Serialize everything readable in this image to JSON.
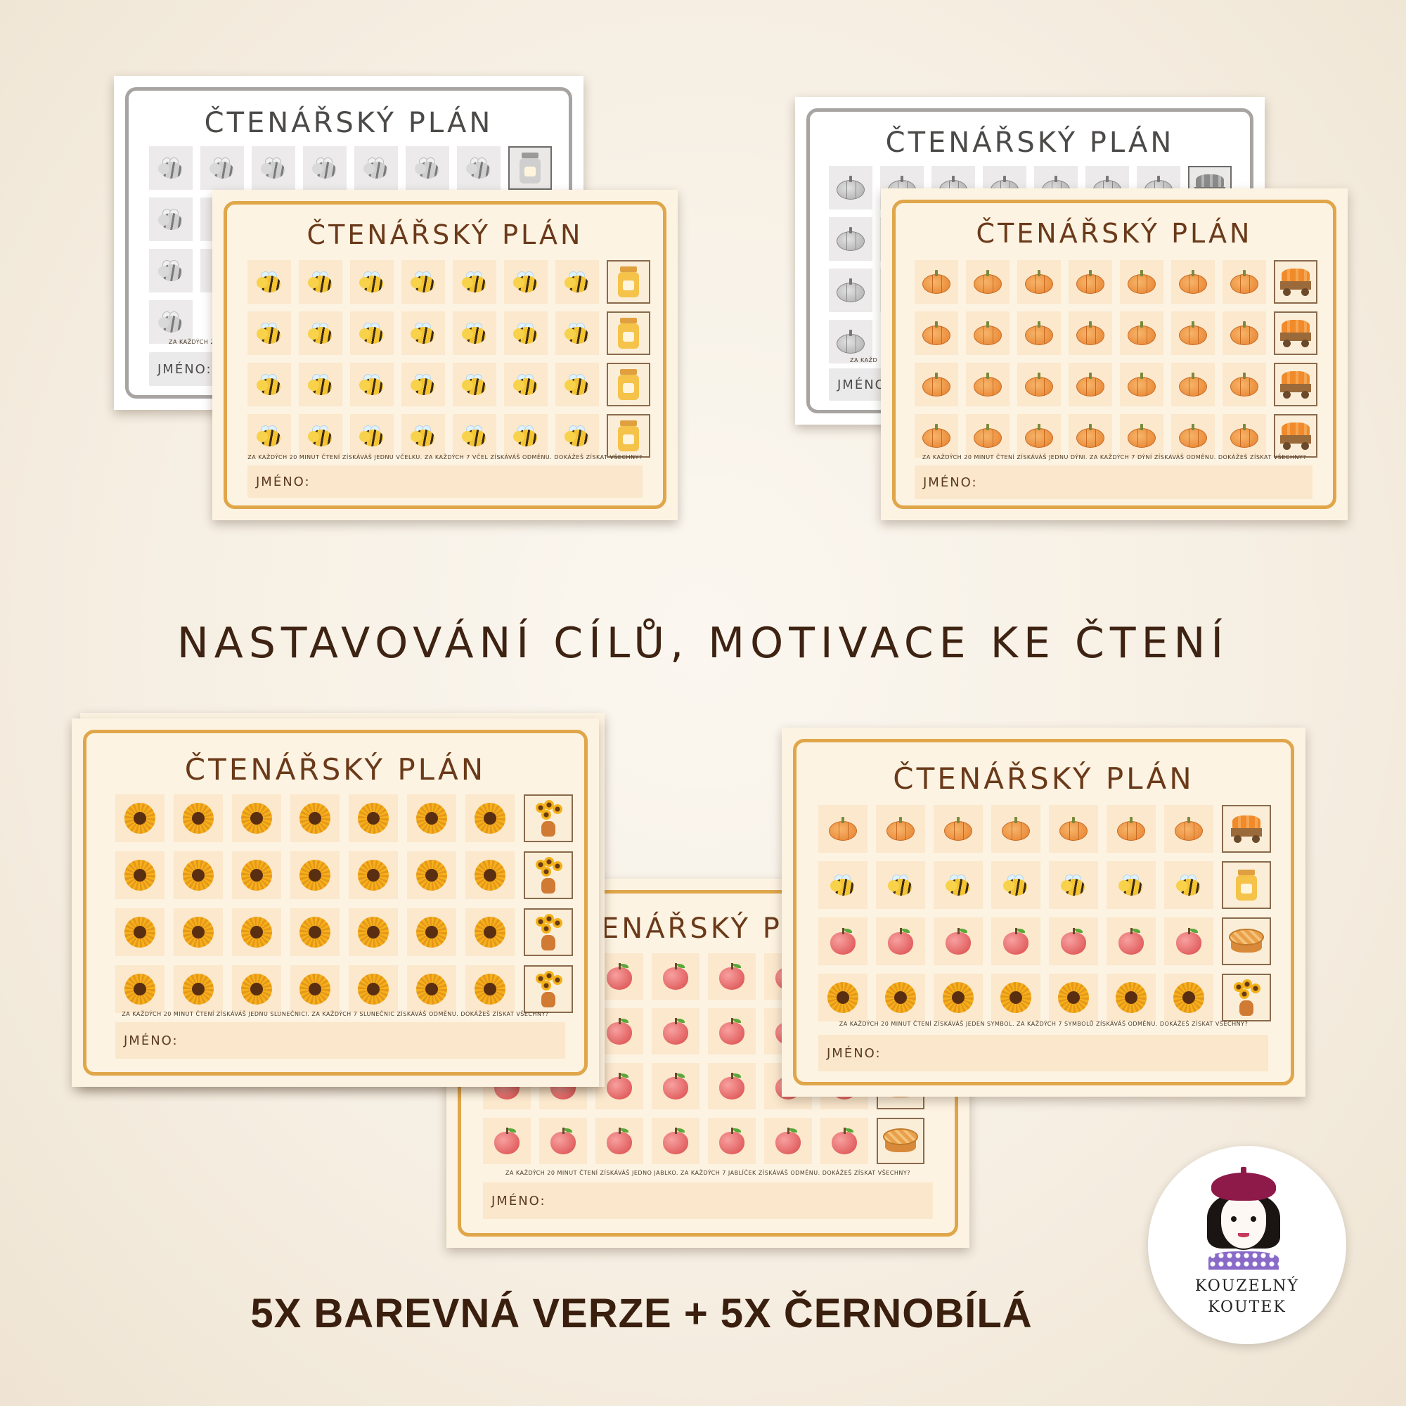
{
  "sheet_title": "ČTENÁŘSKÝ PLÁN",
  "name_label": "JMÉNO:",
  "rules": {
    "bees": "ZA KAŽDÝCH 20 MINUT ČTENÍ ZÍSKÁVÁŠ JEDNU VČELKU. ZA KAŽDÝCH 7 VČEL ZÍSKÁVÁŠ ODMĚNU. DOKÁŽEŠ ZÍSKAT VŠECHNY?",
    "bees_gray_partial": "ZA KAŽDÝCH 20",
    "pumpkins": "ZA KAŽDÝCH 20 MINUT ČTENÍ ZÍSKÁVÁŠ JEDNU DÝNI. ZA KAŽDÝCH 7 DÝNÍ ZÍSKÁVÁŠ ODMĚNU. DOKÁŽEŠ ZÍSKAT VŠECHNY?",
    "pumpkins_gray_partial": "ZA KAŽD",
    "sunflowers": "ZA KAŽDÝCH 20 MINUT ČTENÍ ZÍSKÁVÁŠ JEDNU SLUNEČNICI. ZA KAŽDÝCH 7 SLUNEČNIC ZÍSKÁVÁŠ ODMĚNU. DOKÁŽEŠ ZÍSKAT VŠECHNY?",
    "apples": "ZA KAŽDÝCH 20 MINUT ČTENÍ ZÍSKÁVÁŠ JEDNO JABLKO. ZA KAŽDÝCH 7 JABLÍČEK ZÍSKÁVÁŠ ODMĚNU. DOKÁŽEŠ ZÍSKAT VŠECHNY?",
    "mixed": "ZA KAŽDÝCH 20 MINUT ČTENÍ ZÍSKÁVÁŠ JEDEN SYMBOL. ZA KAŽDÝCH 7 SYMBOLŮ ZÍSKÁVÁŠ ODMĚNU. DOKÁŽEŠ ZÍSKAT VŠECHNY?"
  },
  "apple_title_partial": "ENÁŘSKÝ P",
  "gray_name_partial_1": "JMÉNO:",
  "gray_name_partial_2": "JMÉNO",
  "headline": "NASTAVOVÁNÍ CÍLŮ, MOTIVACE KE ČTENÍ",
  "footer": "5X BAREVNÁ VERZE + 5X ČERNOBÍLÁ",
  "logo": {
    "line1": "KOUZELNÝ",
    "line2": "KOUTEK"
  },
  "icons": {
    "bee": "bee-icon",
    "pumpkin": "pumpkin-icon",
    "apple": "apple-icon",
    "sunflower": "sunflower-icon",
    "honey_jar": "honey-jar-icon",
    "pumpkin_cart": "pumpkin-cart-icon",
    "sunflower_vase": "sunflower-vase-icon",
    "apple_pie": "apple-pie-icon"
  },
  "colors": {
    "frame": "#e0a64a",
    "frame_gray": "#a8a4a2",
    "title_brown": "#6a3a1a",
    "headline": "#3e2312"
  }
}
